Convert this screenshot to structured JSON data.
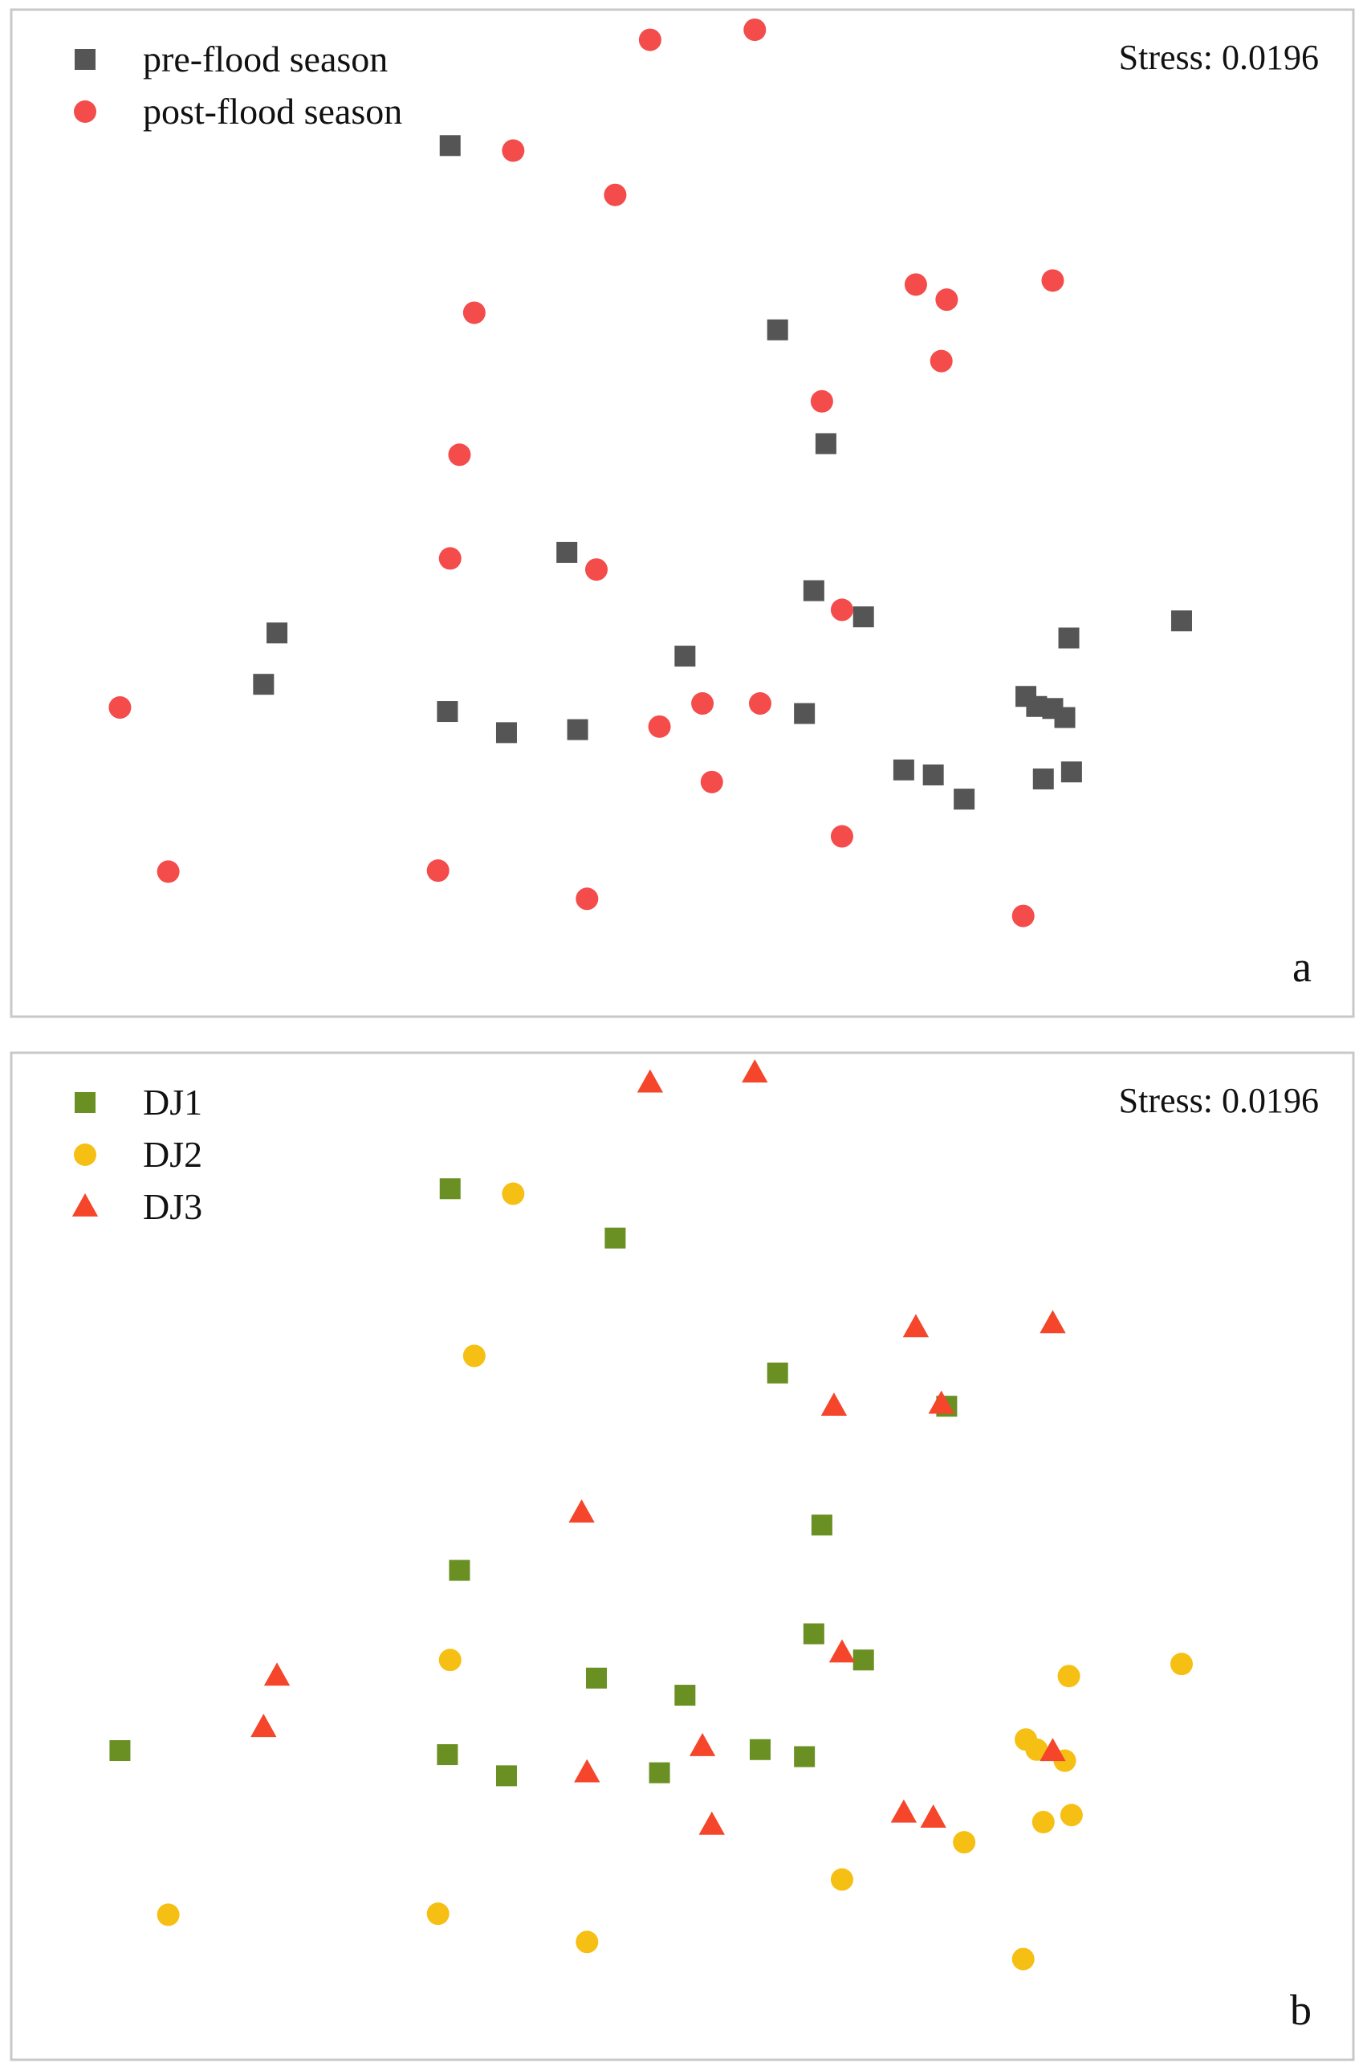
{
  "chart_data": [
    {
      "type": "scatter",
      "panel_label": "a",
      "annotation": "Stress: 0.0196",
      "legend_position": "top-left",
      "grid": false,
      "xlim": [
        0,
        100
      ],
      "ylim": [
        0,
        100
      ],
      "series": [
        {
          "name": "pre-flood season",
          "marker": "square",
          "color": "#555555",
          "points": [
            [
              32.7,
              86.5
            ],
            [
              57.1,
              68.2
            ],
            [
              60.7,
              56.9
            ],
            [
              41.4,
              46.1
            ],
            [
              59.8,
              42.3
            ],
            [
              63.5,
              39.7
            ],
            [
              19.8,
              38.1
            ],
            [
              78.8,
              37.6
            ],
            [
              87.2,
              39.3
            ],
            [
              50.2,
              35.8
            ],
            [
              18.8,
              33.0
            ],
            [
              75.6,
              31.8
            ],
            [
              76.4,
              30.8
            ],
            [
              77.6,
              30.6
            ],
            [
              78.5,
              29.7
            ],
            [
              32.5,
              30.3
            ],
            [
              36.9,
              28.2
            ],
            [
              42.2,
              28.5
            ],
            [
              59.1,
              30.1
            ],
            [
              66.5,
              24.5
            ],
            [
              68.7,
              24.0
            ],
            [
              71.0,
              21.6
            ],
            [
              76.9,
              23.6
            ],
            [
              79.0,
              24.3
            ]
          ]
        },
        {
          "name": "post-flood season",
          "marker": "circle",
          "color": "#f44b4b",
          "points": [
            [
              47.6,
              97.0
            ],
            [
              55.4,
              98.0
            ],
            [
              37.4,
              86.0
            ],
            [
              45.0,
              81.6
            ],
            [
              34.5,
              69.9
            ],
            [
              67.4,
              72.7
            ],
            [
              69.7,
              71.2
            ],
            [
              77.6,
              73.1
            ],
            [
              69.3,
              65.1
            ],
            [
              60.4,
              61.1
            ],
            [
              33.4,
              55.8
            ],
            [
              32.7,
              45.5
            ],
            [
              43.6,
              44.4
            ],
            [
              61.9,
              40.4
            ],
            [
              8.1,
              30.7
            ],
            [
              48.3,
              28.8
            ],
            [
              51.5,
              31.1
            ],
            [
              55.8,
              31.1
            ],
            [
              52.2,
              23.3
            ],
            [
              61.9,
              17.9
            ],
            [
              11.7,
              14.4
            ],
            [
              31.8,
              14.5
            ],
            [
              42.9,
              11.7
            ],
            [
              75.4,
              10.0
            ]
          ]
        }
      ]
    },
    {
      "type": "scatter",
      "panel_label": "b",
      "annotation": "Stress: 0.0196",
      "legend_position": "top-left",
      "grid": false,
      "xlim": [
        0,
        100
      ],
      "ylim": [
        0,
        100
      ],
      "series": [
        {
          "name": "DJ1",
          "marker": "square",
          "color": "#6a8f22",
          "points": [
            [
              32.7,
              86.5
            ],
            [
              45.0,
              81.6
            ],
            [
              57.1,
              68.2
            ],
            [
              69.7,
              64.9
            ],
            [
              60.4,
              53.1
            ],
            [
              33.4,
              48.6
            ],
            [
              59.8,
              42.3
            ],
            [
              63.5,
              39.7
            ],
            [
              43.6,
              37.9
            ],
            [
              50.2,
              36.2
            ],
            [
              8.1,
              30.7
            ],
            [
              32.5,
              30.3
            ],
            [
              36.9,
              28.2
            ],
            [
              48.3,
              28.5
            ],
            [
              55.8,
              30.8
            ],
            [
              59.1,
              30.1
            ]
          ]
        },
        {
          "name": "DJ2",
          "marker": "circle",
          "color": "#f6bf13",
          "points": [
            [
              37.4,
              86.0
            ],
            [
              34.5,
              69.9
            ],
            [
              32.7,
              39.7
            ],
            [
              87.2,
              39.3
            ],
            [
              78.8,
              38.1
            ],
            [
              75.6,
              31.8
            ],
            [
              76.4,
              30.8
            ],
            [
              78.5,
              29.7
            ],
            [
              71.0,
              21.6
            ],
            [
              76.9,
              23.6
            ],
            [
              79.0,
              24.3
            ],
            [
              61.9,
              17.9
            ],
            [
              11.7,
              14.4
            ],
            [
              31.8,
              14.5
            ],
            [
              42.9,
              11.7
            ],
            [
              75.4,
              10.0
            ]
          ]
        },
        {
          "name": "DJ3",
          "marker": "triangle",
          "color": "#f5452a",
          "points": [
            [
              47.6,
              97.0
            ],
            [
              55.4,
              98.0
            ],
            [
              67.4,
              72.7
            ],
            [
              77.6,
              73.1
            ],
            [
              69.3,
              65.1
            ],
            [
              61.3,
              64.9
            ],
            [
              42.5,
              54.3
            ],
            [
              19.8,
              38.1
            ],
            [
              61.9,
              40.4
            ],
            [
              18.8,
              33.0
            ],
            [
              51.5,
              31.1
            ],
            [
              77.6,
              30.6
            ],
            [
              42.9,
              28.5
            ],
            [
              66.5,
              24.5
            ],
            [
              68.7,
              24.0
            ],
            [
              52.2,
              23.3
            ]
          ]
        }
      ]
    }
  ]
}
